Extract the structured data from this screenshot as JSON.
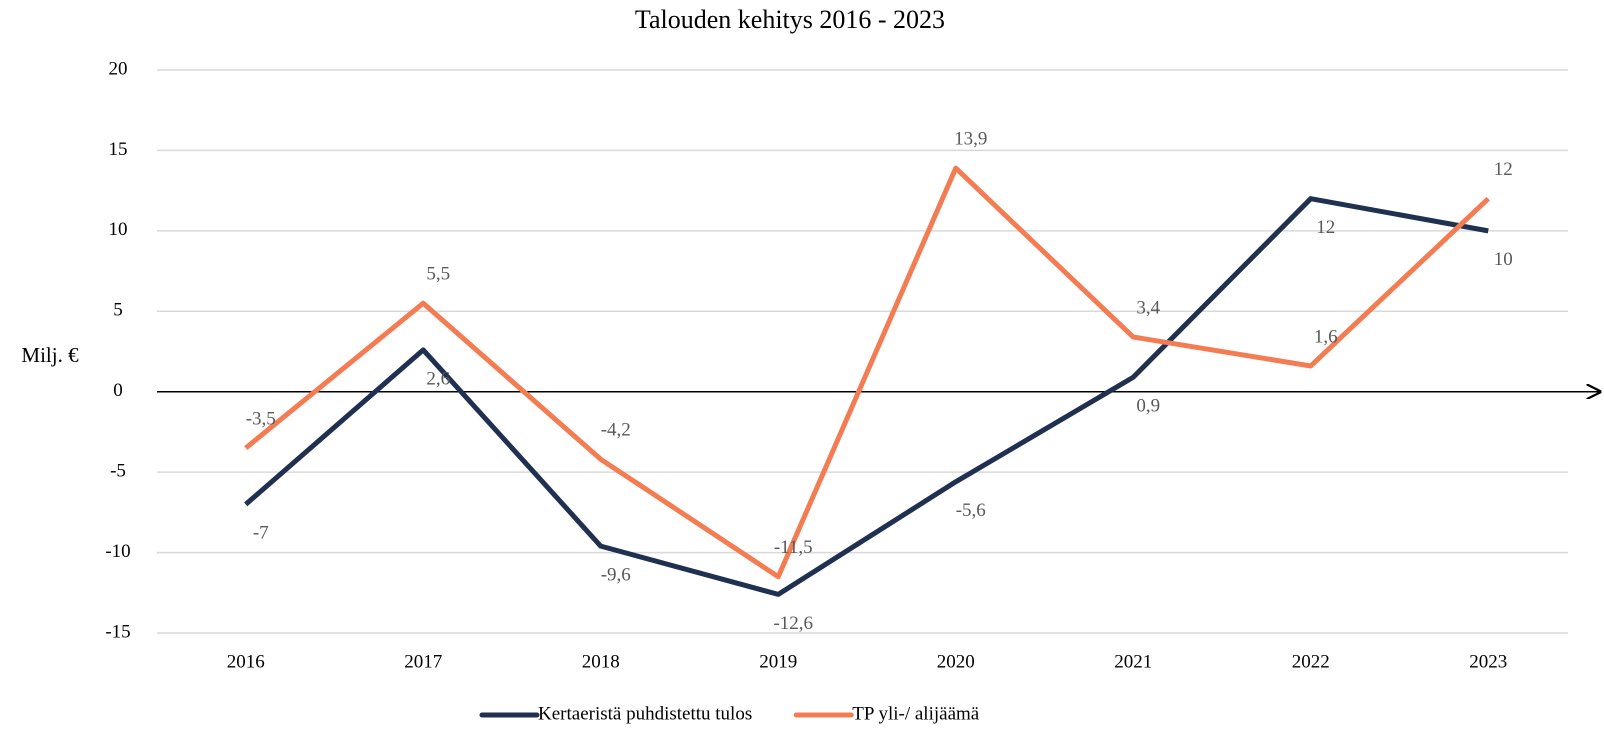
{
  "chart_data": {
    "type": "line",
    "title": "Talouden kehitys 2016 - 2023",
    "y_label": "Milj. €",
    "categories": [
      "2016",
      "2017",
      "2018",
      "2019",
      "2020",
      "2021",
      "2022",
      "2023"
    ],
    "series": [
      {
        "name": "Kertaeristä puhdistettu tulos",
        "color": "#1f3050",
        "values": [
          -7,
          2.6,
          -9.6,
          -12.6,
          -5.6,
          0.9,
          12,
          10
        ],
        "value_labels": [
          "-7",
          "2,6",
          "-9,6",
          "-12,6",
          "-5,6",
          "0,9",
          "12",
          "10"
        ]
      },
      {
        "name": "TP yli-/ alijäämä",
        "color": "#f47c52",
        "values": [
          -3.5,
          5.5,
          -4.2,
          -11.5,
          13.9,
          3.4,
          1.6,
          12
        ],
        "value_labels": [
          "-3,5",
          "5,5",
          "-4,2",
          "-11,5",
          "13,9",
          "3,4",
          "1,6",
          "12"
        ]
      }
    ],
    "ylim": [
      -15,
      20
    ],
    "yticks": [
      -15,
      -10,
      -5,
      0,
      5,
      10,
      15,
      20
    ],
    "grid": true,
    "legend": "bottom"
  }
}
